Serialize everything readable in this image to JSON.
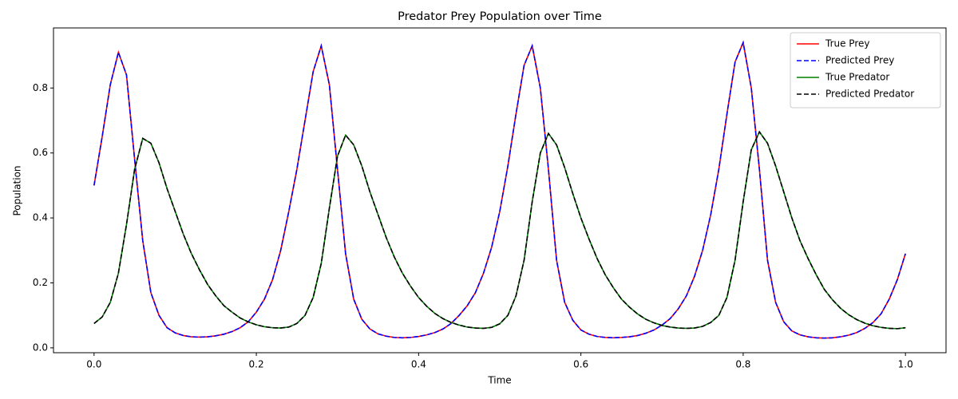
{
  "chart_data": {
    "type": "line",
    "title": "Predator Prey Population over Time",
    "xlabel": "Time",
    "ylabel": "Population",
    "x": [
      0.0,
      0.01,
      0.02,
      0.03,
      0.04,
      0.05,
      0.06,
      0.07,
      0.08,
      0.09,
      0.1,
      0.11,
      0.12,
      0.13,
      0.14,
      0.15,
      0.16,
      0.17,
      0.18,
      0.19,
      0.2,
      0.21,
      0.22,
      0.23,
      0.24,
      0.25,
      0.26,
      0.27,
      0.28,
      0.29,
      0.3,
      0.31,
      0.32,
      0.33,
      0.34,
      0.35,
      0.36,
      0.37,
      0.38,
      0.39,
      0.4,
      0.41,
      0.42,
      0.43,
      0.44,
      0.45,
      0.46,
      0.47,
      0.48,
      0.49,
      0.5,
      0.51,
      0.52,
      0.53,
      0.54,
      0.55,
      0.56,
      0.57,
      0.58,
      0.59,
      0.6,
      0.61,
      0.62,
      0.63,
      0.64,
      0.65,
      0.66,
      0.67,
      0.68,
      0.69,
      0.7,
      0.71,
      0.72,
      0.73,
      0.74,
      0.75,
      0.76,
      0.77,
      0.78,
      0.79,
      0.8,
      0.81,
      0.82,
      0.83,
      0.84,
      0.85,
      0.86,
      0.87,
      0.88,
      0.89,
      0.9,
      0.91,
      0.92,
      0.93,
      0.94,
      0.95,
      0.96,
      0.97,
      0.98,
      0.99,
      1.0
    ],
    "series": [
      {
        "name": "True Prey",
        "color": "#ff0000",
        "linestyle": "solid",
        "values": [
          0.5,
          0.65,
          0.81,
          0.91,
          0.84,
          0.58,
          0.33,
          0.17,
          0.1,
          0.062,
          0.046,
          0.038,
          0.034,
          0.033,
          0.034,
          0.037,
          0.042,
          0.05,
          0.062,
          0.08,
          0.11,
          0.15,
          0.21,
          0.3,
          0.42,
          0.55,
          0.7,
          0.85,
          0.93,
          0.81,
          0.55,
          0.29,
          0.15,
          0.088,
          0.058,
          0.043,
          0.036,
          0.032,
          0.031,
          0.032,
          0.035,
          0.04,
          0.047,
          0.058,
          0.075,
          0.1,
          0.13,
          0.17,
          0.23,
          0.31,
          0.42,
          0.56,
          0.72,
          0.87,
          0.93,
          0.8,
          0.55,
          0.27,
          0.14,
          0.085,
          0.055,
          0.042,
          0.035,
          0.032,
          0.031,
          0.032,
          0.034,
          0.038,
          0.045,
          0.055,
          0.07,
          0.09,
          0.12,
          0.16,
          0.22,
          0.3,
          0.41,
          0.55,
          0.72,
          0.88,
          0.94,
          0.8,
          0.55,
          0.27,
          0.14,
          0.08,
          0.052,
          0.04,
          0.034,
          0.031,
          0.03,
          0.031,
          0.034,
          0.039,
          0.047,
          0.06,
          0.078,
          0.105,
          0.15,
          0.21,
          0.29
        ]
      },
      {
        "name": "Predicted Prey",
        "color": "#0000ff",
        "linestyle": "dashed",
        "values": [
          0.5,
          0.65,
          0.81,
          0.91,
          0.84,
          0.58,
          0.33,
          0.17,
          0.1,
          0.062,
          0.046,
          0.038,
          0.034,
          0.033,
          0.034,
          0.037,
          0.042,
          0.05,
          0.062,
          0.08,
          0.11,
          0.15,
          0.21,
          0.3,
          0.42,
          0.55,
          0.7,
          0.85,
          0.93,
          0.81,
          0.55,
          0.29,
          0.15,
          0.088,
          0.058,
          0.043,
          0.036,
          0.032,
          0.031,
          0.032,
          0.035,
          0.04,
          0.047,
          0.058,
          0.075,
          0.1,
          0.13,
          0.17,
          0.23,
          0.31,
          0.42,
          0.56,
          0.72,
          0.87,
          0.93,
          0.8,
          0.55,
          0.27,
          0.14,
          0.085,
          0.055,
          0.042,
          0.035,
          0.032,
          0.031,
          0.032,
          0.034,
          0.038,
          0.045,
          0.055,
          0.07,
          0.09,
          0.12,
          0.16,
          0.22,
          0.3,
          0.41,
          0.55,
          0.72,
          0.88,
          0.94,
          0.8,
          0.55,
          0.27,
          0.14,
          0.08,
          0.052,
          0.04,
          0.034,
          0.031,
          0.03,
          0.031,
          0.034,
          0.039,
          0.047,
          0.06,
          0.078,
          0.105,
          0.15,
          0.21,
          0.29
        ]
      },
      {
        "name": "True Predator",
        "color": "#008000",
        "linestyle": "solid",
        "values": [
          0.075,
          0.095,
          0.14,
          0.23,
          0.38,
          0.55,
          0.645,
          0.63,
          0.57,
          0.49,
          0.42,
          0.35,
          0.29,
          0.24,
          0.195,
          0.16,
          0.13,
          0.11,
          0.092,
          0.08,
          0.071,
          0.065,
          0.062,
          0.061,
          0.064,
          0.075,
          0.1,
          0.155,
          0.26,
          0.43,
          0.59,
          0.655,
          0.625,
          0.56,
          0.48,
          0.41,
          0.34,
          0.28,
          0.23,
          0.19,
          0.155,
          0.128,
          0.106,
          0.09,
          0.078,
          0.07,
          0.064,
          0.061,
          0.06,
          0.063,
          0.074,
          0.1,
          0.16,
          0.27,
          0.45,
          0.6,
          0.66,
          0.625,
          0.555,
          0.475,
          0.4,
          0.335,
          0.275,
          0.225,
          0.185,
          0.15,
          0.125,
          0.104,
          0.088,
          0.077,
          0.069,
          0.064,
          0.061,
          0.06,
          0.061,
          0.066,
          0.078,
          0.1,
          0.155,
          0.27,
          0.45,
          0.61,
          0.665,
          0.63,
          0.56,
          0.48,
          0.4,
          0.33,
          0.275,
          0.225,
          0.18,
          0.148,
          0.122,
          0.102,
          0.087,
          0.076,
          0.068,
          0.063,
          0.06,
          0.059,
          0.062
        ]
      },
      {
        "name": "Predicted Predator",
        "color": "#000000",
        "linestyle": "dashed",
        "values": [
          0.075,
          0.095,
          0.14,
          0.23,
          0.38,
          0.55,
          0.645,
          0.63,
          0.57,
          0.49,
          0.42,
          0.35,
          0.29,
          0.24,
          0.195,
          0.16,
          0.13,
          0.11,
          0.092,
          0.08,
          0.071,
          0.065,
          0.062,
          0.061,
          0.064,
          0.075,
          0.1,
          0.155,
          0.26,
          0.43,
          0.59,
          0.655,
          0.625,
          0.56,
          0.48,
          0.41,
          0.34,
          0.28,
          0.23,
          0.19,
          0.155,
          0.128,
          0.106,
          0.09,
          0.078,
          0.07,
          0.064,
          0.061,
          0.06,
          0.063,
          0.074,
          0.1,
          0.16,
          0.27,
          0.45,
          0.6,
          0.66,
          0.625,
          0.555,
          0.475,
          0.4,
          0.335,
          0.275,
          0.225,
          0.185,
          0.15,
          0.125,
          0.104,
          0.088,
          0.077,
          0.069,
          0.064,
          0.061,
          0.06,
          0.061,
          0.066,
          0.078,
          0.1,
          0.155,
          0.27,
          0.45,
          0.61,
          0.665,
          0.63,
          0.56,
          0.48,
          0.4,
          0.33,
          0.275,
          0.225,
          0.18,
          0.148,
          0.122,
          0.102,
          0.087,
          0.076,
          0.068,
          0.063,
          0.06,
          0.059,
          0.062
        ]
      }
    ],
    "xlim": [
      -0.05,
      1.05
    ],
    "xticks": [
      {
        "value": 0,
        "label": "0.0"
      },
      0.2,
      0.4,
      0.6,
      0.8,
      {
        "value": 1,
        "label": "1.0"
      }
    ],
    "ylim": [
      -0.015,
      0.985
    ],
    "yticks": [
      {
        "value": 0,
        "label": "0.0"
      },
      0.2,
      0.4,
      0.6,
      0.8
    ],
    "legend": "upper right",
    "grid": false
  }
}
